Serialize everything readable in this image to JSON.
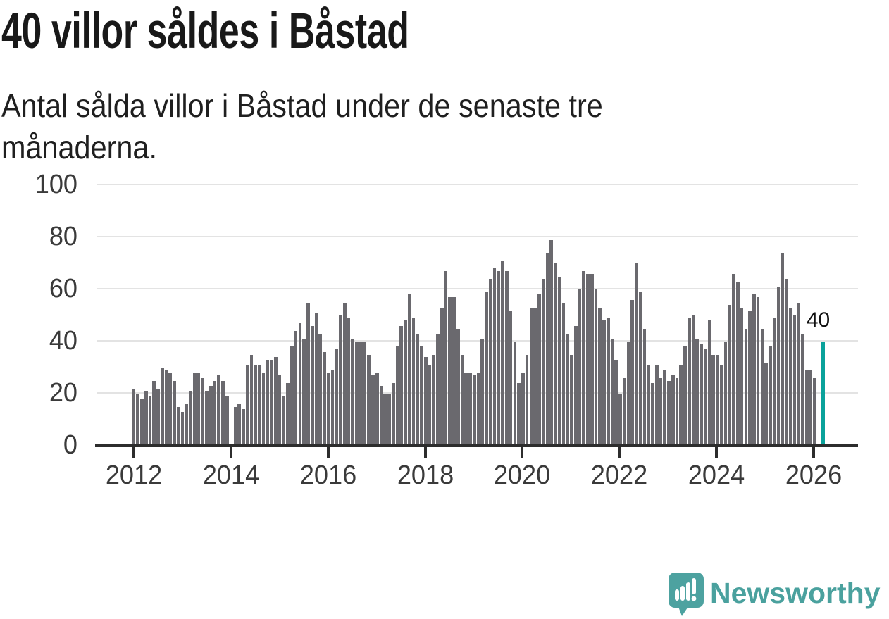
{
  "header": {
    "title": "40 villor såldes i Båstad",
    "subtitle_line1": "Antal sålda villor i Båstad under de senaste tre",
    "subtitle_line2": "månaderna."
  },
  "footer": {
    "brand": "Newsworthy",
    "logo_icon": "bar-chart-speech-bubble",
    "brand_color": "#4aa19e"
  },
  "chart_data": {
    "type": "bar",
    "title": "40 villor såldes i Båstad",
    "subtitle": "Antal sålda villor i Båstad under de senaste tre månaderna.",
    "x_tick_labels": [
      "2012",
      "2014",
      "2016",
      "2018",
      "2020",
      "2022",
      "2024",
      "2026"
    ],
    "y_tick_labels": [
      "0",
      "20",
      "40",
      "60",
      "80",
      "100"
    ],
    "y_ticks": [
      0,
      20,
      40,
      60,
      80,
      100
    ],
    "ylim": [
      0,
      100
    ],
    "grid": true,
    "legend": "none",
    "bar_color": "#6a696e",
    "highlight_color": "#0aa29b",
    "series": [
      {
        "year": 2012,
        "values": [
          22,
          20,
          18,
          21,
          19,
          25,
          22,
          30,
          29,
          28,
          25,
          15
        ]
      },
      {
        "year": 2013,
        "values": [
          13,
          16,
          21,
          28,
          28,
          26,
          21,
          23,
          25,
          27,
          25,
          19
        ]
      },
      {
        "year": 2014,
        "values": [
          0,
          15,
          16,
          14,
          31,
          35,
          31,
          31,
          28,
          33,
          33,
          34
        ]
      },
      {
        "year": 2015,
        "values": [
          27,
          19,
          24,
          38,
          44,
          47,
          41,
          55,
          46,
          51,
          43,
          36
        ]
      },
      {
        "year": 2016,
        "values": [
          28,
          29,
          37,
          50,
          55,
          49,
          41,
          40,
          40,
          40,
          35,
          27
        ]
      },
      {
        "year": 2017,
        "values": [
          28,
          23,
          20,
          20,
          24,
          38,
          46,
          48,
          58,
          49,
          43,
          38
        ]
      },
      {
        "year": 2018,
        "values": [
          34,
          31,
          35,
          43,
          53,
          67,
          57,
          57,
          45,
          35,
          28,
          28
        ]
      },
      {
        "year": 2019,
        "values": [
          27,
          28,
          41,
          59,
          64,
          68,
          67,
          71,
          67,
          52,
          40,
          24
        ]
      },
      {
        "year": 2020,
        "values": [
          28,
          35,
          53,
          53,
          58,
          64,
          74,
          79,
          70,
          65,
          55,
          43
        ]
      },
      {
        "year": 2021,
        "values": [
          35,
          46,
          60,
          67,
          66,
          66,
          60,
          53,
          48,
          49,
          41,
          33
        ]
      },
      {
        "year": 2022,
        "values": [
          20,
          26,
          40,
          56,
          70,
          59,
          45,
          31,
          24,
          31,
          26,
          29
        ]
      },
      {
        "year": 2023,
        "values": [
          25,
          27,
          26,
          31,
          38,
          49,
          50,
          41,
          39,
          37,
          48,
          35
        ]
      },
      {
        "year": 2024,
        "values": [
          35,
          31,
          40,
          54,
          66,
          63,
          53,
          45,
          52,
          58,
          57,
          45
        ]
      },
      {
        "year": 2025,
        "values": [
          32,
          38,
          49,
          61,
          74,
          64,
          53,
          50,
          55,
          43,
          29,
          29
        ]
      },
      {
        "year": 2026,
        "values": [
          26
        ]
      }
    ],
    "highlight_bar": {
      "label": "40",
      "value": 40,
      "gap_slots_after_last_gray": 1
    }
  }
}
